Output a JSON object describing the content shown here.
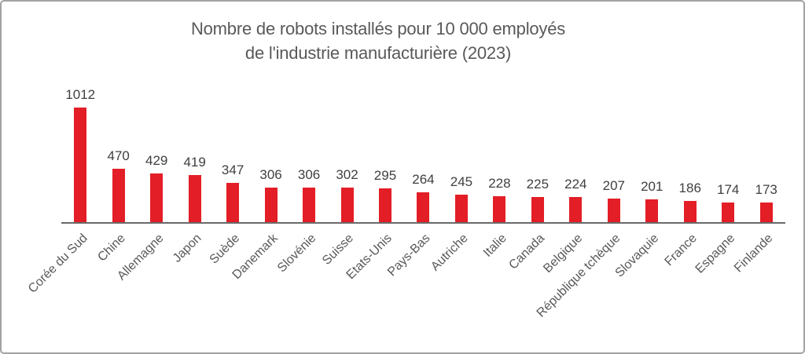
{
  "chart_data": {
    "type": "bar",
    "title_line1": "Nombre de robots installés pour 10 000 employés",
    "title_line2": "de l'industrie manufacturière (2023)",
    "categories": [
      "Corée du Sud",
      "Chine",
      "Allemagne",
      "Japon",
      "Suède",
      "Danemark",
      "Slovénie",
      "Suisse",
      "Etats-Unis",
      "Pays-Bas",
      "Autriche",
      "Italie",
      "Canada",
      "Belgique",
      "République tchèque",
      "Slovaquie",
      "France",
      "Espagne",
      "Finlande"
    ],
    "values": [
      1012,
      470,
      429,
      419,
      347,
      306,
      306,
      302,
      295,
      264,
      245,
      228,
      225,
      224,
      207,
      201,
      186,
      174,
      173
    ],
    "xlabel": "",
    "ylabel": "",
    "ylim": [
      0,
      1012
    ],
    "grid": false,
    "legend": false,
    "data_labels": true,
    "category_label_rotation_deg": -45,
    "colors": {
      "bar": "#e31e26",
      "title_text": "#595959",
      "value_label_text": "#3f3f3f",
      "category_label_text": "#595959",
      "axis_line": "#6a6a6a",
      "frame_border": "#a2a2a2",
      "background": "#ffffff"
    }
  }
}
